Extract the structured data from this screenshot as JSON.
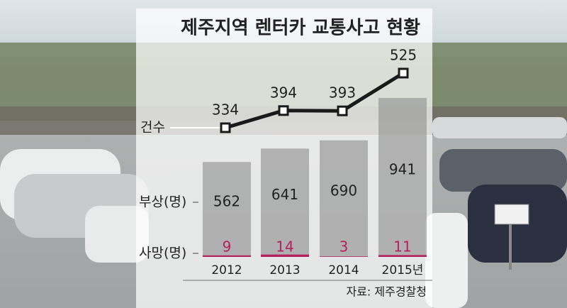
{
  "chart_data": {
    "type": "bar-line",
    "title": "제주지역 렌터카 교통사고 현황",
    "categories": [
      "2012",
      "2013",
      "2014",
      "2015년"
    ],
    "series": [
      {
        "name": "건수",
        "type": "line",
        "color": "#1a1a1a",
        "values": [
          334,
          394,
          393,
          525
        ]
      },
      {
        "name": "부상(명)",
        "type": "bar",
        "color": "#8c8c8c",
        "values": [
          562,
          641,
          690,
          941
        ]
      },
      {
        "name": "사망(명)",
        "type": "bar",
        "color": "#b5205e",
        "values": [
          9,
          14,
          3,
          11
        ]
      }
    ],
    "source": "자료: 제주경찰청"
  }
}
